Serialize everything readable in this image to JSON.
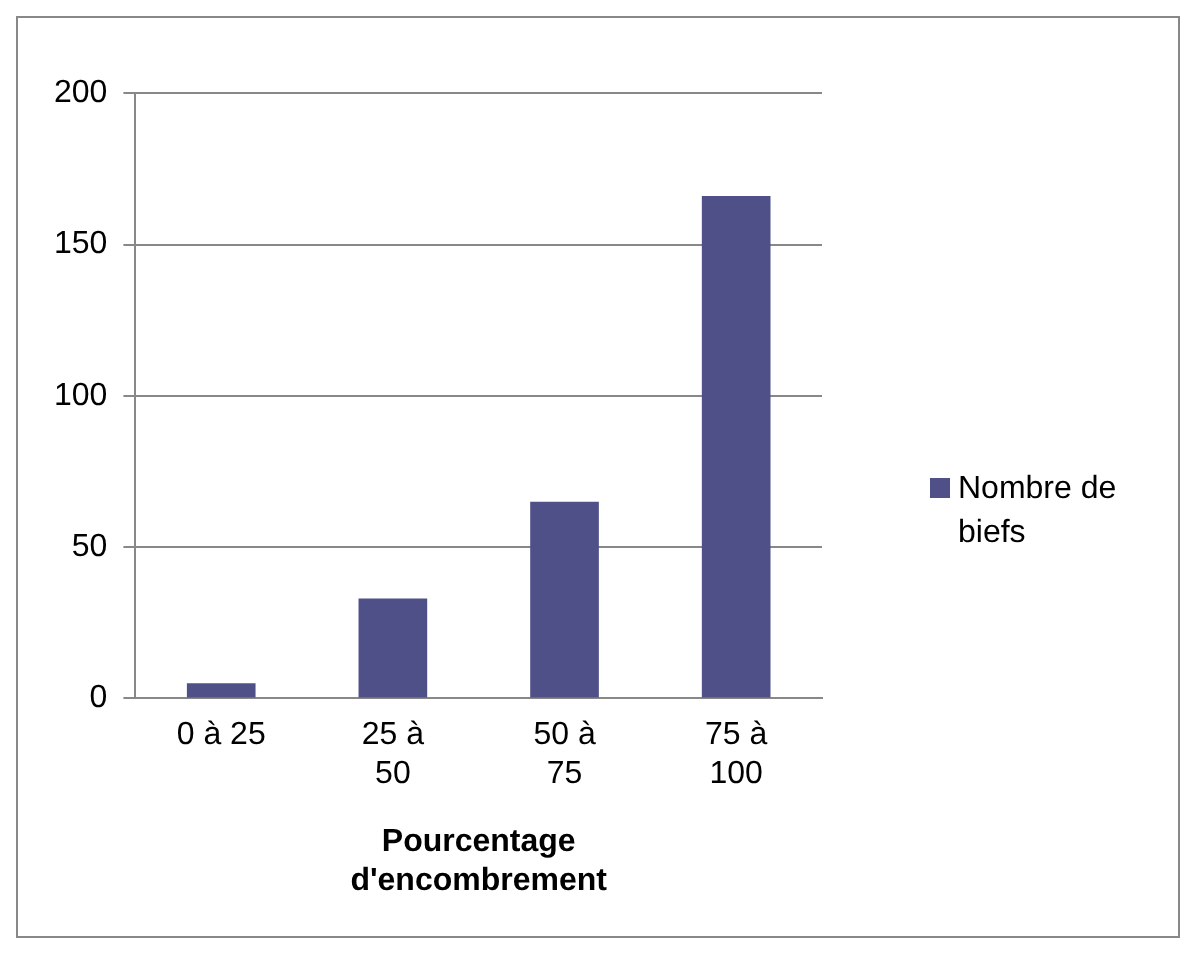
{
  "chart_data": {
    "type": "bar",
    "categories": [
      "0 à 25",
      "25 à 50",
      "50 à 75",
      "75 à 100"
    ],
    "series": [
      {
        "name": "Nombre de biefs",
        "color": "#4f5088",
        "values": [
          5,
          33,
          65,
          166
        ]
      }
    ],
    "xlabel": "Pourcentage d'encombrement",
    "ylim": [
      0,
      200
    ],
    "yticks": [
      0,
      50,
      100,
      150,
      200
    ],
    "grid": "y",
    "legend": "right"
  }
}
